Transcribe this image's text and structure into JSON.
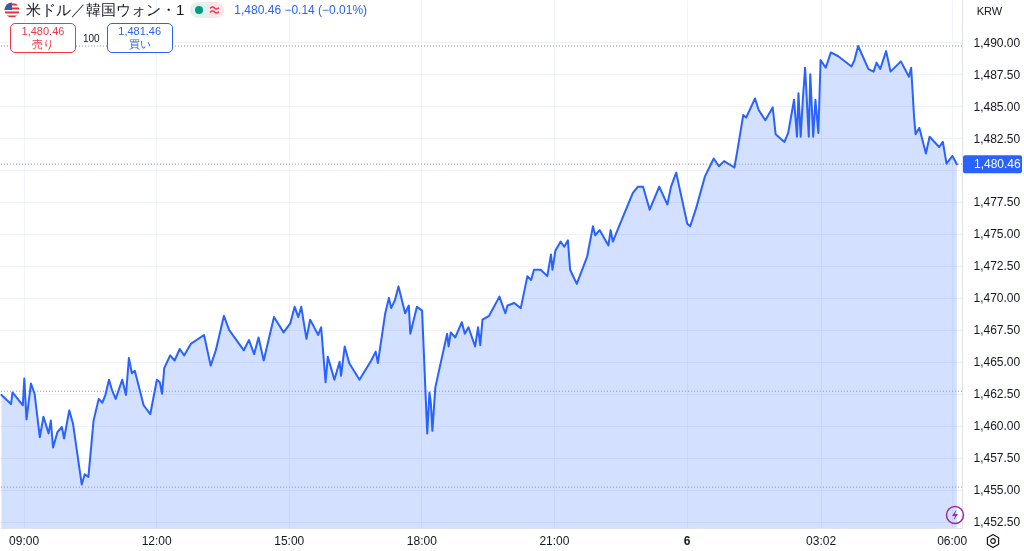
{
  "chart_data": {
    "type": "area",
    "title": "米ドル／韓国ウォン・1",
    "subtitle": "1,480.46 −0.14 (−0.01%)",
    "ylabel": "KRW",
    "annotations": [
      "1,480.46",
      "売り",
      "100",
      "1,481.46",
      "買い"
    ],
    "x": [
      "--12-05T08:30",
      "--12-05T08:43",
      "--12-05T08:45",
      "--12-05T08:59",
      "--12-05T09:01",
      "--12-05T09:04",
      "--12-05T09:10",
      "--12-05T09:15",
      "--12-05T09:22",
      "--12-05T09:27",
      "--12-05T09:34",
      "--12-05T09:37",
      "--12-05T09:40",
      "--12-05T09:46",
      "--12-05T09:52",
      "--12-05T09:55",
      "--12-05T10:02",
      "--12-05T10:07",
      "--12-05T10:19",
      "--12-05T10:23",
      "--12-05T10:28",
      "--12-05T10:35",
      "--12-05T10:42",
      "--12-05T10:47",
      "--12-05T10:51",
      "--12-05T10:56",
      "--12-05T11:00",
      "--12-05T11:05",
      "--12-05T11:14",
      "--12-05T11:19",
      "--12-05T11:23",
      "--12-05T11:27",
      "--12-05T11:31",
      "--12-05T11:43",
      "--12-05T11:52",
      "--12-05T12:01",
      "--12-05T12:05",
      "--12-05T12:08",
      "--12-05T12:11",
      "--12-05T12:19",
      "--12-05T12:25",
      "--12-05T12:32",
      "--12-05T12:38",
      "--12-05T12:47",
      "--12-05T13:05",
      "--12-05T13:14",
      "--12-05T13:21",
      "--12-05T13:32",
      "--12-05T13:39",
      "--12-05T13:59",
      "--12-05T14:06",
      "--12-05T14:13",
      "--12-05T14:19",
      "--12-05T14:26",
      "--12-05T14:33",
      "--12-05T14:40",
      "--12-05T14:53",
      "--12-05T15:02",
      "--12-05T15:08",
      "--12-05T15:13",
      "--12-05T15:17",
      "--12-05T15:24",
      "--12-05T15:29",
      "--12-05T15:40",
      "--12-05T15:44",
      "--12-05T15:50",
      "--12-05T15:53",
      "--12-05T16:02",
      "--12-05T16:09",
      "--12-05T16:11",
      "--12-05T16:16",
      "--12-05T16:22",
      "--12-05T16:36",
      "--12-05T16:52",
      "--12-05T16:58",
      "--12-05T17:01",
      "--12-05T17:11",
      "--12-05T17:16",
      "--12-05T17:19",
      "--12-05T17:24",
      "--12-05T17:29",
      "--12-05T17:38",
      "--12-05T17:43",
      "--12-05T17:45",
      "--12-05T17:54",
      "--12-05T18:01",
      "--12-05T18:08",
      "--12-05T18:11",
      "--12-05T18:13",
      "--12-05T18:15",
      "--12-05T18:19",
      "--12-05T18:35",
      "--12-05T18:37",
      "--12-05T18:40",
      "--12-05T18:46",
      "--12-05T18:55",
      "--12-05T18:59",
      "--12-05T19:04",
      "--12-05T19:13",
      "--12-05T19:17",
      "--12-05T19:20",
      "--12-05T19:23",
      "--12-05T19:32",
      "--12-05T19:46",
      "--12-05T19:54",
      "--12-05T19:57",
      "--12-05T20:06",
      "--12-05T20:15",
      "--12-05T20:24",
      "--12-05T20:29",
      "--12-05T20:33",
      "--12-05T20:42",
      "--12-05T20:51",
      "--12-05T20:56",
      "--12-05T20:58",
      "--12-05T21:02",
      "--12-05T21:09",
      "--12-05T21:14",
      "--12-05T21:19",
      "--12-05T21:22",
      "--12-05T21:31",
      "--12-05T21:45",
      "--12-05T21:53",
      "--12-05T21:56",
      "--12-05T22:02",
      "--12-05T22:14",
      "--12-05T22:17",
      "--12-05T22:20",
      "--12-05T22:27",
      "--12-05T22:47",
      "--12-05T22:54",
      "--12-05T23:01",
      "--12-05T23:10",
      "--12-05T23:23",
      "--12-05T23:34",
      "--12-05T23:39",
      "--12-05T23:46",
      "--12-06T00:01",
      "--12-06T00:05",
      "--12-06T00:13",
      "--12-06T00:25",
      "--12-06T00:37",
      "--12-06T00:44",
      "--12-06T00:51",
      "--12-06T01:05",
      "--12-06T01:09",
      "--12-06T01:17",
      "--12-06T01:21",
      "--12-06T01:33",
      "--12-06T01:38",
      "--12-06T01:47",
      "--12-06T01:57",
      "--12-06T02:01",
      "--12-06T02:13",
      "--12-06T02:18",
      "--12-06T02:26",
      "--12-06T02:30",
      "--12-06T02:32",
      "--12-06T02:35",
      "--12-06T02:38",
      "--12-06T02:41",
      "--12-06T02:46",
      "--12-06T02:48",
      "--12-06T02:52",
      "--12-06T02:55",
      "--12-06T02:59",
      "--12-06T03:02",
      "--12-06T03:09",
      "--12-06T03:16",
      "--12-06T03:26",
      "--12-06T03:44",
      "--12-06T03:48",
      "--12-06T03:53",
      "--12-06T04:07",
      "--12-06T04:14",
      "--12-06T04:18",
      "--12-06T04:23",
      "--12-06T04:31",
      "--12-06T04:37",
      "--12-06T04:51",
      "--12-06T05:02",
      "--12-06T05:05",
      "--12-06T05:09",
      "--12-06T05:11",
      "--12-06T05:16",
      "--12-06T05:25",
      "--12-06T05:30",
      "--12-06T05:43",
      "--12-06T05:48",
      "--12-06T05:53",
      "--12-06T06:01",
      "--12-06T06:07"
    ],
    "series": [
      {
        "color": "#2962ff",
        "values": [
          1462.4,
          1461.7,
          1462.6,
          1461.6,
          1463.7,
          1460.5,
          1463.3,
          1462.5,
          1459.1,
          1460.7,
          1459.4,
          1460.4,
          1458.3,
          1459.5,
          1459.9,
          1459.0,
          1461.2,
          1460.2,
          1455.4,
          1456.2,
          1456.0,
          1460.4,
          1462.1,
          1461.8,
          1462.4,
          1463.6,
          1462.8,
          1462.1,
          1463.6,
          1462.4,
          1465.3,
          1464.1,
          1464.3,
          1461.6,
          1460.9,
          1463.6,
          1463.4,
          1462.5,
          1464.5,
          1465.5,
          1465.1,
          1466.0,
          1465.5,
          1466.4,
          1467.1,
          1464.7,
          1465.9,
          1468.6,
          1467.5,
          1465.9,
          1466.7,
          1465.6,
          1466.9,
          1465.1,
          1466.8,
          1468.5,
          1467.3,
          1468.0,
          1469.3,
          1468.5,
          1469.3,
          1466.8,
          1468.3,
          1467.1,
          1467.7,
          1463.4,
          1465.4,
          1463.6,
          1465.0,
          1463.9,
          1466.2,
          1464.9,
          1463.6,
          1465.1,
          1465.8,
          1464.9,
          1468.8,
          1470.0,
          1469.2,
          1469.8,
          1470.9,
          1468.8,
          1469.4,
          1467.2,
          1469.3,
          1469.0,
          1459.4,
          1462.6,
          1461.7,
          1459.6,
          1463.0,
          1467.2,
          1466.2,
          1467.3,
          1466.9,
          1468.1,
          1467.2,
          1467.7,
          1466.2,
          1467.7,
          1466.3,
          1468.3,
          1468.6,
          1470.1,
          1468.8,
          1469.4,
          1469.6,
          1469.2,
          1471.7,
          1471.4,
          1472.2,
          1472.2,
          1471.7,
          1473.4,
          1472.2,
          1473.7,
          1474.4,
          1474.0,
          1474.5,
          1472.2,
          1471.1,
          1473.2,
          1475.6,
          1474.9,
          1475.3,
          1474.1,
          1475.3,
          1474.4,
          1475.4,
          1478.2,
          1478.7,
          1478.7,
          1476.9,
          1478.7,
          1477.3,
          1478.7,
          1479.8,
          1475.8,
          1475.6,
          1477.0,
          1479.5,
          1480.9,
          1480.3,
          1480.7,
          1480.2,
          1481.5,
          1484.3,
          1484.1,
          1485.6,
          1484.7,
          1483.9,
          1484.9,
          1482.8,
          1482.2,
          1482.9,
          1485.5,
          1482.6,
          1486.0,
          1482.6,
          1485.6,
          1488.0,
          1482.6,
          1487.5,
          1482.6,
          1485.5,
          1482.9,
          1488.6,
          1488.0,
          1489.2,
          1488.9,
          1488.1,
          1488.6,
          1489.7,
          1487.9,
          1487.7,
          1488.4,
          1487.9,
          1489.3,
          1487.7,
          1488.5,
          1487.3,
          1488.0,
          1484.1,
          1482.8,
          1483.3,
          1481.3,
          1482.6,
          1481.8,
          1482.2,
          1480.5,
          1481.1,
          1480.46
        ]
      }
    ],
    "xlim": [
      "--12-05T08:28",
      "--12-06T06:14"
    ],
    "xticks": [
      {
        "value": "--12-05T09:00",
        "label": "09:00"
      },
      {
        "value": "--12-05T12:00",
        "label": "12:00"
      },
      {
        "value": "--12-05T15:00",
        "label": "15:00"
      },
      {
        "value": "--12-05T18:00",
        "label": "18:00"
      },
      {
        "value": "--12-05T21:00",
        "label": "21:00"
      },
      {
        "value": "--12-06T00:00",
        "label": "6"
      },
      {
        "value": "--12-06T03:02",
        "label": "03:02"
      },
      {
        "value": "--12-06T06:00",
        "label": "06:00"
      }
    ],
    "ylim": [
      1452,
      1493.3
    ],
    "yticks": [
      {
        "value": 1452.5,
        "label": "1,452.50"
      },
      {
        "value": 1455,
        "label": "1,455.00"
      },
      {
        "value": 1457.5,
        "label": "1,457.50"
      },
      {
        "value": 1460,
        "label": "1,460.00"
      },
      {
        "value": 1462.5,
        "label": "1,462.50"
      },
      {
        "value": 1465,
        "label": "1,465.00"
      },
      {
        "value": 1467.5,
        "label": "1,467.50"
      },
      {
        "value": 1470,
        "label": "1,470.00"
      },
      {
        "value": 1472.5,
        "label": "1,472.50"
      },
      {
        "value": 1475,
        "label": "1,475.00"
      },
      {
        "value": 1477.5,
        "label": "1,477.50"
      },
      {
        "value": 1480,
        "label": null
      },
      {
        "value": 1482.5,
        "label": "1,482.50"
      },
      {
        "value": 1485,
        "label": "1,485.00"
      },
      {
        "value": 1487.5,
        "label": "1,487.50"
      },
      {
        "value": 1490,
        "label": "1,490.00"
      }
    ],
    "grid": true,
    "ref_lines": [
      {
        "axis": "y",
        "value": 1489.7,
        "color": "#9598a1",
        "line_style": "dotted"
      },
      {
        "axis": "y",
        "value": 1480.46,
        "label": "1,480.46",
        "color": "#9598a1",
        "line_style": "dotted"
      },
      {
        "axis": "y",
        "value": 1462.7,
        "color": "#9598a1",
        "line_style": "dotted"
      },
      {
        "axis": "y",
        "value": 1455.2,
        "color": "#9598a1",
        "line_style": "dotted"
      }
    ]
  }
}
